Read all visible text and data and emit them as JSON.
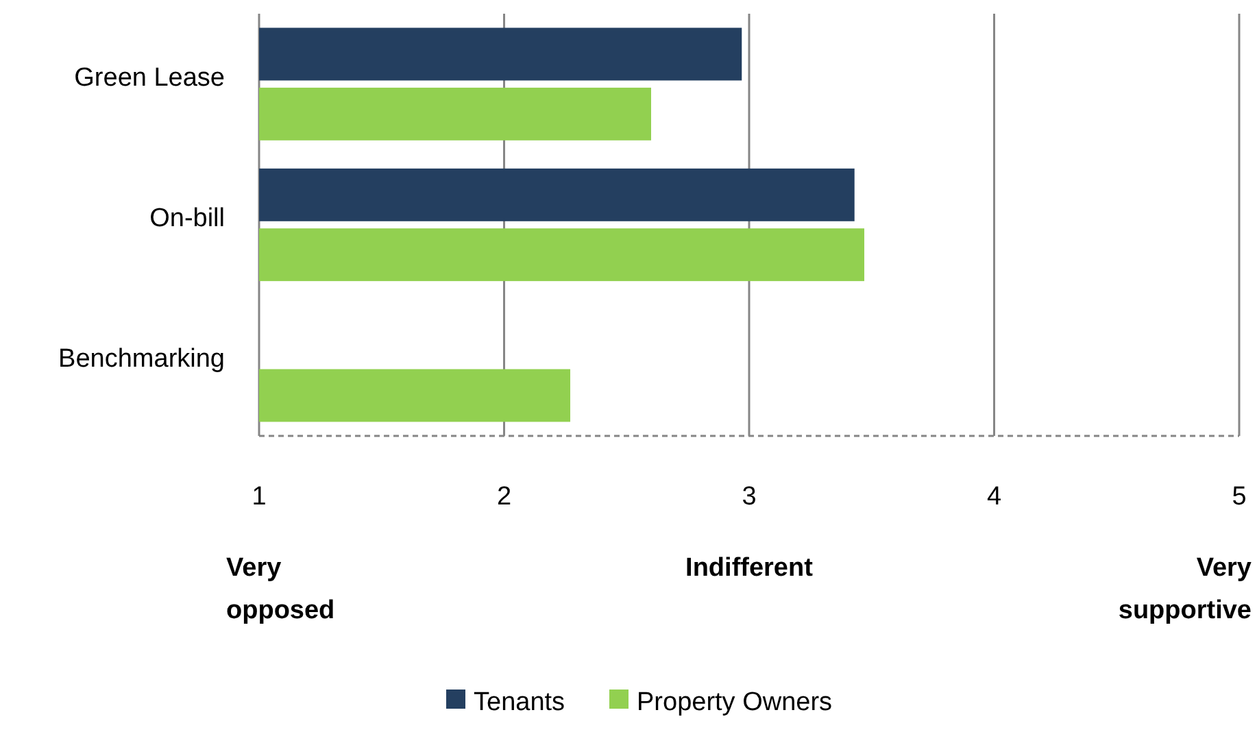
{
  "chart_data": {
    "type": "bar",
    "orientation": "horizontal",
    "categories": [
      "Green Lease",
      "On-bill",
      "Benchmarking"
    ],
    "series": [
      {
        "name": "Tenants",
        "color": "#243f60",
        "values": [
          2.97,
          3.43,
          null
        ]
      },
      {
        "name": "Property Owners",
        "color": "#92d050",
        "values": [
          2.6,
          3.47,
          2.27
        ]
      }
    ],
    "xlim": [
      1,
      5
    ],
    "xticks": [
      1,
      2,
      3,
      4,
      5
    ],
    "grid": "x",
    "legend": "bottom",
    "annotations": [
      "Very opposed",
      "Indifferent",
      "Very supportive"
    ]
  }
}
